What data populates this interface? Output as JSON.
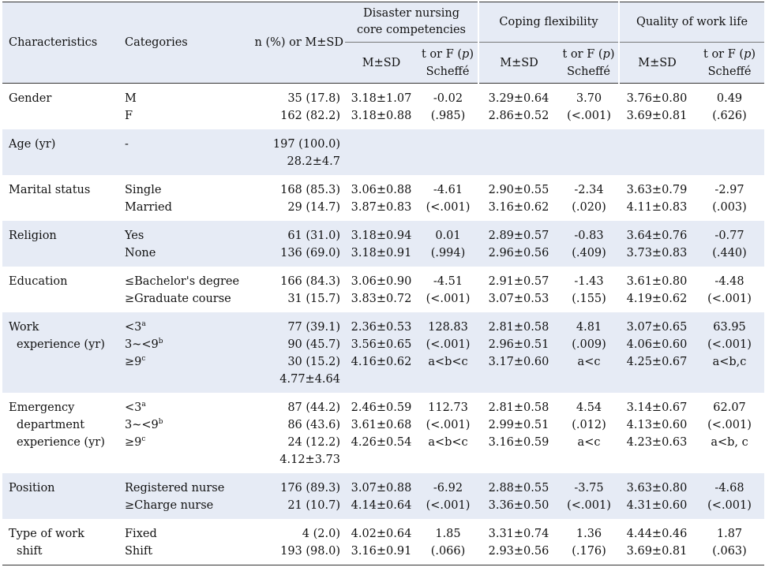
{
  "headers": {
    "characteristics": "Characteristics",
    "categories": "Categories",
    "n_pct": "n (%) or M±SD",
    "group1": "Disaster nursing core competencies",
    "group2": "Coping flexibility",
    "group3": "Quality of work life",
    "msd": "M±SD",
    "test_line1": "t or F (p)",
    "test_line2": "Scheffé"
  },
  "rows": [
    {
      "char": [
        "Gender"
      ],
      "cats": [
        "M",
        "F"
      ],
      "n": [
        "35 (17.8)",
        "162 (82.2)"
      ],
      "d_m": [
        "3.18±1.07",
        "3.18±0.88"
      ],
      "d_t": [
        "-0.02",
        "(.985)"
      ],
      "c_m": [
        "3.29±0.64",
        "2.86±0.52"
      ],
      "c_t": [
        "3.70",
        "(<.001)"
      ],
      "q_m": [
        "3.76±0.80",
        "3.69±0.81"
      ],
      "q_t": [
        "0.49",
        "(.626)"
      ]
    },
    {
      "char": [
        "Age (yr)"
      ],
      "cats": [
        "-"
      ],
      "n": [
        "197 (100.0)",
        "28.2±4.7"
      ],
      "d_m": [],
      "d_t": [],
      "c_m": [],
      "c_t": [],
      "q_m": [],
      "q_t": []
    },
    {
      "char": [
        "Marital status"
      ],
      "cats": [
        "Single",
        "Married"
      ],
      "n": [
        "168 (85.3)",
        "29 (14.7)"
      ],
      "d_m": [
        "3.06±0.88",
        "3.87±0.83"
      ],
      "d_t": [
        "-4.61",
        "(<.001)"
      ],
      "c_m": [
        "2.90±0.55",
        "3.16±0.62"
      ],
      "c_t": [
        "-2.34",
        "(.020)"
      ],
      "q_m": [
        "3.63±0.79",
        "4.11±0.83"
      ],
      "q_t": [
        "-2.97",
        "(.003)"
      ]
    },
    {
      "char": [
        "Religion"
      ],
      "cats": [
        "Yes",
        "None"
      ],
      "n": [
        "61 (31.0)",
        "136 (69.0)"
      ],
      "d_m": [
        "3.18±0.94",
        "3.18±0.91"
      ],
      "d_t": [
        "0.01",
        "(.994)"
      ],
      "c_m": [
        "2.89±0.57",
        "2.96±0.56"
      ],
      "c_t": [
        "-0.83",
        "(.409)"
      ],
      "q_m": [
        "3.64±0.76",
        "3.73±0.83"
      ],
      "q_t": [
        "-0.77",
        "(.440)"
      ]
    },
    {
      "char": [
        "Education"
      ],
      "cats": [
        "≤Bachelor's degree",
        "≥Graduate course"
      ],
      "n": [
        "166 (84.3)",
        "31 (15.7)"
      ],
      "d_m": [
        "3.06±0.90",
        "3.83±0.72"
      ],
      "d_t": [
        "-4.51",
        "(<.001)"
      ],
      "c_m": [
        "2.91±0.57",
        "3.07±0.53"
      ],
      "c_t": [
        "-1.43",
        "(.155)"
      ],
      "q_m": [
        "3.61±0.80",
        "4.19±0.62"
      ],
      "q_t": [
        "-4.48",
        "(<.001)"
      ]
    },
    {
      "char": [
        "Work",
        "experience (yr)"
      ],
      "cats": [
        "<3",
        "3~<9",
        "≥9"
      ],
      "sups": [
        "a",
        "b",
        "c"
      ],
      "n": [
        "77 (39.1)",
        "90 (45.7)",
        "30 (15.2)",
        "4.77±4.64"
      ],
      "d_m": [
        "2.36±0.53",
        "3.56±0.65",
        "4.16±0.62"
      ],
      "d_t": [
        "128.83",
        "(<.001)",
        "a<b<c"
      ],
      "c_m": [
        "2.81±0.58",
        "2.96±0.51",
        "3.17±0.60"
      ],
      "c_t": [
        "4.81",
        "(.009)",
        "a<c"
      ],
      "q_m": [
        "3.07±0.65",
        "4.06±0.60",
        "4.25±0.67"
      ],
      "q_t": [
        "63.95",
        "(<.001)",
        "a<b,c"
      ]
    },
    {
      "char": [
        "Emergency",
        "department",
        "experience (yr)"
      ],
      "cats": [
        "<3",
        "3~<9",
        "≥9"
      ],
      "sups": [
        "a",
        "b",
        "c"
      ],
      "n": [
        "87 (44.2)",
        "86 (43.6)",
        "24 (12.2)",
        "4.12±3.73"
      ],
      "d_m": [
        "2.46±0.59",
        "3.61±0.68",
        "4.26±0.54"
      ],
      "d_t": [
        "112.73",
        "(<.001)",
        "a<b<c"
      ],
      "c_m": [
        "2.81±0.58",
        "2.99±0.51",
        "3.16±0.59"
      ],
      "c_t": [
        "4.54",
        "(.012)",
        "a<c"
      ],
      "q_m": [
        "3.14±0.67",
        "4.13±0.60",
        "4.23±0.63"
      ],
      "q_t": [
        "62.07",
        "(<.001)",
        "a<b, c"
      ]
    },
    {
      "char": [
        "Position"
      ],
      "cats": [
        "Registered nurse",
        "≥Charge nurse"
      ],
      "n": [
        "176 (89.3)",
        "21 (10.7)"
      ],
      "d_m": [
        "3.07±0.88",
        "4.14±0.64"
      ],
      "d_t": [
        "-6.92",
        "(<.001)"
      ],
      "c_m": [
        "2.88±0.55",
        "3.36±0.50"
      ],
      "c_t": [
        "-3.75",
        "(<.001)"
      ],
      "q_m": [
        "3.63±0.80",
        "4.31±0.60"
      ],
      "q_t": [
        "-4.68",
        "(<.001)"
      ]
    },
    {
      "char": [
        "Type of work",
        "shift"
      ],
      "cats": [
        "Fixed",
        "Shift"
      ],
      "n": [
        "4 (2.0)",
        "193 (98.0)"
      ],
      "d_m": [
        "4.02±0.64",
        "3.16±0.91"
      ],
      "d_t": [
        "1.85",
        "(.066)"
      ],
      "c_m": [
        "3.31±0.74",
        "2.93±0.56"
      ],
      "c_t": [
        "1.36",
        "(.176)"
      ],
      "q_m": [
        "4.44±0.46",
        "3.69±0.81"
      ],
      "q_t": [
        "1.87",
        "(.063)"
      ]
    }
  ]
}
